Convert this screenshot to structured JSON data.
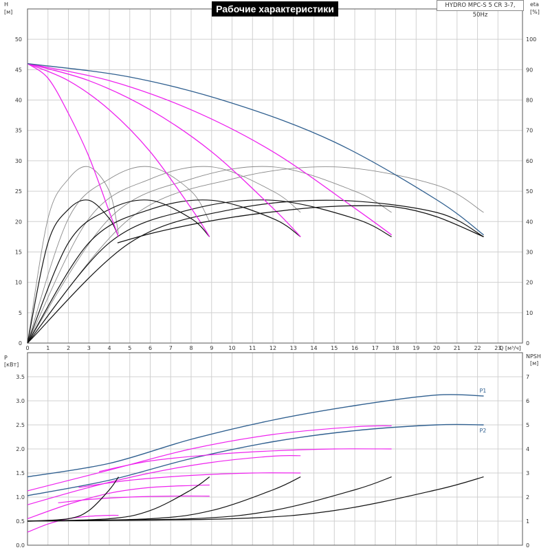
{
  "title": "Рабочие характеристики",
  "model": "HYDRO MPC-S 5 CR 3-7, 50Hz",
  "colors": {
    "blue": "#2f5f8f",
    "magenta": "#ee22ee",
    "black": "#111111",
    "gray": "#888888",
    "grid": "#d0d0d0"
  },
  "chart_data": [
    {
      "type": "line",
      "name": "performance",
      "xlabel": "Q [м³/ч]",
      "ylabel_left": "H",
      "ylabel_left_unit": "[м]",
      "ylabel_right": "eta",
      "ylabel_right_unit": "[%]",
      "xlim": [
        0,
        24.2
      ],
      "ylim": [
        0,
        55
      ],
      "ylim_right": [
        0,
        110
      ],
      "xticks": [
        0,
        1,
        2,
        3,
        4,
        5,
        6,
        7,
        8,
        9,
        10,
        11,
        12,
        13,
        14,
        15,
        16,
        17,
        18,
        19,
        20,
        21,
        22,
        23
      ],
      "yticks": [
        0,
        5,
        10,
        15,
        20,
        25,
        30,
        35,
        40,
        45,
        50
      ],
      "yticks_right": [
        0,
        10,
        20,
        30,
        40,
        50,
        60,
        70,
        80,
        90,
        100
      ],
      "grid": true,
      "head_curves": [
        {
          "color": "magenta",
          "x": [
            0,
            1,
            2,
            3,
            4,
            4.45
          ],
          "y": [
            46,
            43.6,
            37.8,
            30.7,
            21.6,
            17.5
          ]
        },
        {
          "color": "magenta",
          "x": [
            0,
            2,
            4,
            6,
            8,
            8.9
          ],
          "y": [
            46,
            43.2,
            38.4,
            31.5,
            22.2,
            17.5
          ]
        },
        {
          "color": "magenta",
          "x": [
            0,
            3,
            6,
            9,
            12,
            13.35
          ],
          "y": [
            46,
            43.2,
            38.4,
            31.5,
            22.2,
            17.5
          ]
        },
        {
          "color": "magenta",
          "x": [
            0,
            4,
            8,
            12,
            16,
            17.8
          ],
          "y": [
            46,
            43.2,
            38.4,
            31.5,
            22.2,
            17.8
          ]
        },
        {
          "color": "blue",
          "x": [
            0,
            5,
            10,
            15,
            20,
            22.3
          ],
          "y": [
            46,
            43.8,
            39.5,
            33.1,
            23.6,
            17.8
          ]
        },
        {
          "color": "black",
          "x": [
            4.4,
            6,
            8,
            10,
            12,
            14,
            16,
            18,
            20,
            22.3
          ],
          "y": [
            16.5,
            18.0,
            19.5,
            20.7,
            21.6,
            22.3,
            22.6,
            22.4,
            20.8,
            17.5
          ]
        }
      ],
      "eta_curves": [
        {
          "color": "gray",
          "x": [
            0,
            1,
            2,
            3,
            4,
            4.45
          ],
          "y": [
            0,
            41,
            54,
            58,
            50,
            36
          ]
        },
        {
          "color": "gray",
          "x": [
            0,
            2,
            4,
            6,
            8,
            8.9
          ],
          "y": [
            0,
            41,
            54,
            58,
            50,
            40
          ]
        },
        {
          "color": "gray",
          "x": [
            0,
            3,
            6,
            9,
            12,
            13.35
          ],
          "y": [
            0,
            41,
            54,
            58,
            50,
            43
          ]
        },
        {
          "color": "gray",
          "x": [
            0,
            4,
            8,
            12,
            16,
            17.8
          ],
          "y": [
            0,
            41,
            54,
            58,
            50,
            43
          ]
        },
        {
          "color": "gray",
          "x": [
            0,
            5,
            10,
            15,
            20,
            22.3
          ],
          "y": [
            0,
            41,
            54,
            58,
            52,
            43
          ]
        },
        {
          "color": "black",
          "x": [
            0,
            1,
            2,
            3,
            4,
            4.45
          ],
          "y": [
            0,
            33,
            44,
            47,
            41,
            35
          ]
        },
        {
          "color": "black",
          "x": [
            0,
            2,
            4,
            6,
            8,
            8.9
          ],
          "y": [
            0,
            33,
            44,
            47,
            41,
            35
          ]
        },
        {
          "color": "black",
          "x": [
            0,
            3,
            6,
            9,
            12,
            13.35
          ],
          "y": [
            0,
            33,
            44,
            47,
            41,
            35
          ]
        },
        {
          "color": "black",
          "x": [
            0,
            4,
            8,
            12,
            16,
            17.8
          ],
          "y": [
            0,
            33,
            44,
            47,
            41,
            35
          ]
        },
        {
          "color": "black",
          "x": [
            0,
            5,
            10,
            15,
            20,
            22.3
          ],
          "y": [
            0,
            33,
            44,
            47,
            43,
            35
          ]
        }
      ]
    },
    {
      "type": "line",
      "name": "power-npsh",
      "ylabel_left": "P",
      "ylabel_left_unit": "[кВт]",
      "ylabel_right": "NPSH",
      "ylabel_right_unit": "[м]",
      "xlim": [
        0,
        24.2
      ],
      "ylim": [
        0,
        4
      ],
      "ylim_right": [
        0,
        8
      ],
      "yticks": [
        0,
        0.5,
        1.0,
        1.5,
        2.0,
        2.5,
        3.0,
        3.5
      ],
      "ytick_labels": [
        "0.0",
        "0.5",
        "1.0",
        "1.5",
        "2.0",
        "2.5",
        "3.0",
        "3.5"
      ],
      "yticks_right": [
        0,
        1,
        2,
        3,
        4,
        5,
        6,
        7
      ],
      "grid": true,
      "series": [
        {
          "name": "P1",
          "color": "blue",
          "x": [
            0,
            4,
            8,
            12,
            16,
            20,
            22.3
          ],
          "y": [
            1.42,
            1.7,
            2.2,
            2.6,
            2.9,
            3.12,
            3.1
          ]
        },
        {
          "name": "P2",
          "color": "blue",
          "x": [
            0,
            4,
            8,
            12,
            16,
            20,
            22.3
          ],
          "y": [
            1.03,
            1.35,
            1.8,
            2.15,
            2.38,
            2.5,
            2.5
          ]
        },
        {
          "color": "magenta",
          "x": [
            0,
            4,
            8,
            12,
            16,
            17.8
          ],
          "y": [
            1.13,
            1.56,
            2.0,
            2.3,
            2.46,
            2.48
          ]
        },
        {
          "color": "magenta",
          "x": [
            0,
            3,
            6,
            9,
            12,
            13.35
          ],
          "y": [
            0.84,
            1.2,
            1.5,
            1.72,
            1.85,
            1.86
          ]
        },
        {
          "color": "magenta",
          "x": [
            0,
            2,
            4,
            6,
            8,
            8.9
          ],
          "y": [
            0.55,
            0.85,
            1.08,
            1.2,
            1.24,
            1.25
          ]
        },
        {
          "color": "magenta",
          "x": [
            0,
            1,
            2,
            3,
            4,
            4.45
          ],
          "y": [
            0.27,
            0.44,
            0.55,
            0.6,
            0.62,
            0.62
          ]
        },
        {
          "color": "magenta",
          "x": [
            3.5,
            6,
            9,
            12,
            15,
            17.8
          ],
          "y": [
            1.53,
            1.75,
            1.88,
            1.96,
            2.0,
            2.0
          ]
        },
        {
          "color": "magenta",
          "x": [
            2.5,
            5,
            8,
            11,
            13.35
          ],
          "y": [
            1.2,
            1.35,
            1.45,
            1.5,
            1.5
          ]
        },
        {
          "color": "magenta",
          "x": [
            1.5,
            3,
            5,
            7,
            8.9
          ],
          "y": [
            0.88,
            0.95,
            1.0,
            1.02,
            1.02
          ]
        },
        {
          "color": "black",
          "x": [
            0,
            2,
            3,
            4,
            4.45
          ],
          "y": [
            0.5,
            0.55,
            0.72,
            1.15,
            1.42
          ]
        },
        {
          "color": "black",
          "x": [
            0,
            4,
            6,
            8,
            8.9
          ],
          "y": [
            0.5,
            0.55,
            0.72,
            1.15,
            1.42
          ]
        },
        {
          "color": "black",
          "x": [
            0,
            6,
            9,
            12,
            13.35
          ],
          "y": [
            0.5,
            0.55,
            0.72,
            1.15,
            1.42
          ]
        },
        {
          "color": "black",
          "x": [
            0,
            8,
            12,
            16,
            17.8
          ],
          "y": [
            0.5,
            0.55,
            0.72,
            1.15,
            1.42
          ]
        },
        {
          "color": "black",
          "x": [
            0,
            10,
            15,
            20,
            22.3
          ],
          "y": [
            0.5,
            0.55,
            0.72,
            1.15,
            1.42
          ]
        }
      ]
    }
  ]
}
